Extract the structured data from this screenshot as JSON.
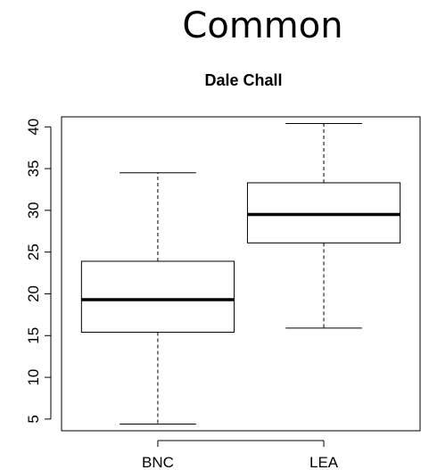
{
  "page": {
    "heading": "Common"
  },
  "chart_data": {
    "type": "boxplot",
    "title": "Dale Chall",
    "xlabel": "",
    "ylabel": "",
    "categories": [
      "BNC",
      "LEA"
    ],
    "series": [
      {
        "category": "BNC",
        "min": 4.4,
        "q1": 15.4,
        "median": 19.3,
        "q3": 23.9,
        "max": 34.5
      },
      {
        "category": "LEA",
        "min": 15.9,
        "q1": 26.1,
        "median": 29.5,
        "q3": 33.3,
        "max": 40.4
      }
    ],
    "ylim": [
      3.6,
      41.2
    ],
    "yticks": [
      5,
      10,
      15,
      20,
      25,
      30,
      35,
      40
    ],
    "grid": false,
    "legend": "none",
    "colors": {
      "box_fill": "#ffffff",
      "stroke": "#000000"
    }
  }
}
